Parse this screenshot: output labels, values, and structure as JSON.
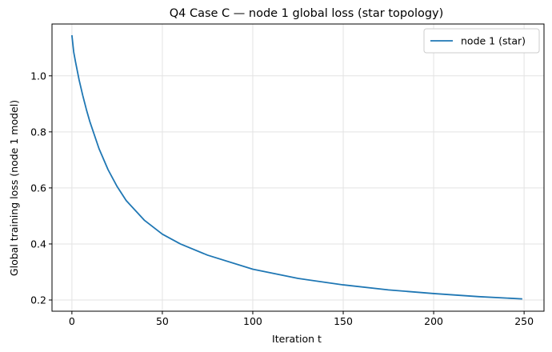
{
  "chart_data": {
    "type": "line",
    "title": "Q4 Case C — node 1 global loss (star topology)",
    "xlabel": "Iteration t",
    "ylabel": "Global training loss (node 1 model)",
    "xlim": [
      -11,
      261
    ],
    "ylim": [
      0.16,
      1.185
    ],
    "xticks": [
      0,
      50,
      100,
      150,
      200,
      250
    ],
    "yticks": [
      0.2,
      0.4,
      0.6,
      0.8,
      1.0
    ],
    "ytick_labels": [
      "0.2",
      "0.4",
      "0.6",
      "0.8",
      "1.0"
    ],
    "grid": true,
    "legend_position": "top-right",
    "series": [
      {
        "name": "node 1 (star)",
        "color": "#1f77b4",
        "x": [
          0,
          1,
          2,
          4,
          6,
          8,
          10,
          15,
          20,
          25,
          30,
          40,
          50,
          60,
          75,
          100,
          125,
          150,
          175,
          200,
          225,
          249
        ],
        "y": [
          1.145,
          1.085,
          1.05,
          0.985,
          0.93,
          0.88,
          0.835,
          0.74,
          0.665,
          0.605,
          0.555,
          0.485,
          0.435,
          0.4,
          0.36,
          0.31,
          0.277,
          0.254,
          0.236,
          0.223,
          0.212,
          0.204
        ]
      }
    ]
  }
}
